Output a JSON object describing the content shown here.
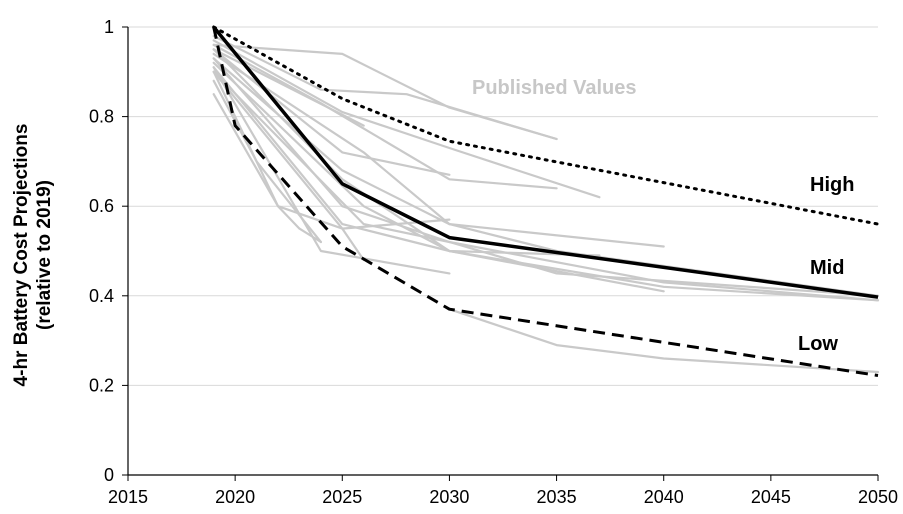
{
  "chart_data": {
    "type": "line",
    "title": "",
    "xlabel": "",
    "ylabel": "4-hr Battery Cost Projections",
    "ylabel_line2": "(relative to 2019)",
    "xlim": [
      2015,
      2050
    ],
    "ylim": [
      0,
      1
    ],
    "x_ticks": [
      "2015",
      "2020",
      "2025",
      "2030",
      "2035",
      "2040",
      "2045",
      "2050"
    ],
    "y_ticks": [
      "0",
      "0.2",
      "0.4",
      "0.6",
      "0.8",
      "1"
    ],
    "grid": "horizontal",
    "legend": "none",
    "annotations": {
      "published": "Published Values",
      "high": "High",
      "mid": "Mid",
      "low": "Low"
    },
    "series": [
      {
        "name": "High",
        "style": "dotted",
        "color": "#000000",
        "x": [
          2019,
          2025,
          2030,
          2050
        ],
        "y": [
          1.0,
          0.84,
          0.745,
          0.56
        ]
      },
      {
        "name": "Mid",
        "style": "solid",
        "color": "#000000",
        "x": [
          2019,
          2025,
          2030,
          2050
        ],
        "y": [
          1.0,
          0.65,
          0.53,
          0.397
        ]
      },
      {
        "name": "Low",
        "style": "dashed",
        "color": "#000000",
        "x": [
          2019,
          2020,
          2025,
          2030,
          2050
        ],
        "y": [
          1.0,
          0.78,
          0.51,
          0.37,
          0.222
        ]
      }
    ],
    "published_series": [
      {
        "x": [
          2019,
          2025,
          2030,
          2035
        ],
        "y": [
          0.96,
          0.94,
          0.82,
          0.75
        ]
      },
      {
        "x": [
          2019,
          2024,
          2028,
          2035
        ],
        "y": [
          0.98,
          0.86,
          0.85,
          0.75
        ]
      },
      {
        "x": [
          2019,
          2025,
          2030,
          2037
        ],
        "y": [
          0.97,
          0.81,
          0.73,
          0.62
        ]
      },
      {
        "x": [
          2019,
          2024,
          2030,
          2035
        ],
        "y": [
          0.96,
          0.83,
          0.66,
          0.64
        ]
      },
      {
        "x": [
          2019,
          2026
        ],
        "y": [
          0.95,
          0.78
        ]
      },
      {
        "x": [
          2019,
          2025,
          2030
        ],
        "y": [
          0.95,
          0.72,
          0.67
        ]
      },
      {
        "x": [
          2019,
          2026,
          2030,
          2040
        ],
        "y": [
          0.94,
          0.72,
          0.56,
          0.51
        ]
      },
      {
        "x": [
          2019,
          2025,
          2030,
          2035,
          2050
        ],
        "y": [
          0.93,
          0.68,
          0.56,
          0.5,
          0.4
        ]
      },
      {
        "x": [
          2019,
          2025,
          2030,
          2040,
          2050
        ],
        "y": [
          0.93,
          0.6,
          0.52,
          0.43,
          0.39
        ]
      },
      {
        "x": [
          2019,
          2026,
          2030,
          2040
        ],
        "y": [
          0.92,
          0.6,
          0.5,
          0.41
        ]
      },
      {
        "x": [
          2019,
          2025,
          2030,
          2037
        ],
        "y": [
          0.91,
          0.56,
          0.5,
          0.49
        ]
      },
      {
        "x": [
          2019,
          2026,
          2030,
          2035,
          2050
        ],
        "y": [
          0.9,
          0.56,
          0.52,
          0.45,
          0.4
        ]
      },
      {
        "x": [
          2019,
          2024,
          2030
        ],
        "y": [
          0.91,
          0.5,
          0.45
        ]
      },
      {
        "x": [
          2019,
          2022,
          2025,
          2030
        ],
        "y": [
          0.9,
          0.6,
          0.55,
          0.57
        ]
      },
      {
        "x": [
          2019,
          2025,
          2026
        ],
        "y": [
          0.9,
          0.55,
          0.48
        ]
      },
      {
        "x": [
          2019,
          2021,
          2023,
          2024
        ],
        "y": [
          0.88,
          0.7,
          0.58,
          0.52
        ]
      },
      {
        "x": [
          2019,
          2022,
          2023,
          2024
        ],
        "y": [
          0.85,
          0.6,
          0.55,
          0.52
        ]
      },
      {
        "x": [
          2019,
          2025,
          2030,
          2040,
          2050
        ],
        "y": [
          0.95,
          0.66,
          0.5,
          0.42,
          0.39
        ]
      },
      {
        "x": [
          2030,
          2035,
          2040,
          2050
        ],
        "y": [
          0.37,
          0.29,
          0.26,
          0.23
        ]
      }
    ]
  }
}
